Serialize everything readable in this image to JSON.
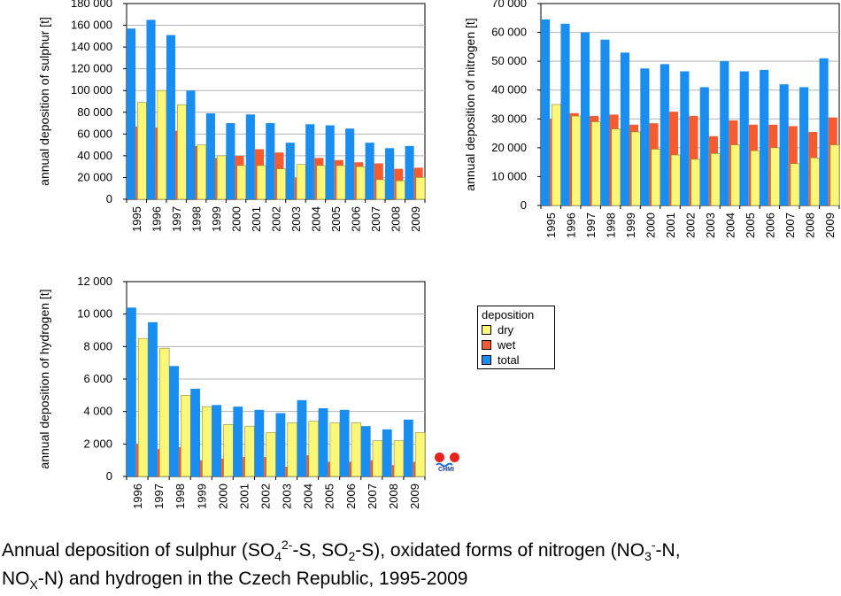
{
  "colors": {
    "dry": "#fcf776",
    "wet": "#f45b2e",
    "total": "#1a8ef0",
    "grid": "#b3b3b3"
  },
  "legend": {
    "title": "deposition",
    "items": [
      {
        "key": "dry",
        "label": "dry"
      },
      {
        "key": "wet",
        "label": "wet"
      },
      {
        "key": "total",
        "label": "total"
      }
    ]
  },
  "logo": {
    "text": "CHMI"
  },
  "caption": {
    "part1": "Annual deposition of sulphur (SO",
    "sub1": "4",
    "sup1": "2-",
    "part2": "-S, SO",
    "sub2": "2",
    "part3": "-S), oxidated forms of nitrogen (NO",
    "sub3": "3",
    "sup3": "-",
    "part4": "-N, NO",
    "sub4": "X",
    "part5": "-N) and hydrogen in the Czech Republic, 1995-2009"
  },
  "chart_data": [
    {
      "id": "sulphur",
      "type": "bar",
      "ylabel": "annual deposition of sulphur [t]",
      "ylim": [
        0,
        180000
      ],
      "ytick_step": 20000,
      "yticks": [
        "0",
        "20 000",
        "40 000",
        "60 000",
        "80 000",
        "100 000",
        "120 000",
        "140 000",
        "160 000",
        "180 000"
      ],
      "categories": [
        "1995",
        "1996",
        "1997",
        "1998",
        "1999",
        "2000",
        "2001",
        "2002",
        "2003",
        "2004",
        "2005",
        "2006",
        "2007",
        "2008",
        "2009"
      ],
      "series": [
        {
          "name": "total",
          "key": "total",
          "values": [
            157000,
            165000,
            151000,
            100000,
            79000,
            70000,
            78000,
            70000,
            52000,
            69000,
            68000,
            65000,
            52000,
            47000,
            49000
          ]
        },
        {
          "name": "wet",
          "key": "wet",
          "values": [
            67000,
            66000,
            63000,
            49000,
            38000,
            40000,
            46000,
            43000,
            20000,
            38000,
            36000,
            34000,
            33000,
            28000,
            29000
          ]
        },
        {
          "name": "dry",
          "key": "dry",
          "values": [
            89000,
            100000,
            87000,
            50000,
            40000,
            31000,
            31000,
            28000,
            32000,
            31000,
            31000,
            30000,
            18000,
            17000,
            20000
          ]
        }
      ],
      "grid": true
    },
    {
      "id": "nitrogen",
      "type": "bar",
      "ylabel": "annual deposition of nitrogen [t]",
      "ylim": [
        0,
        70000
      ],
      "ytick_step": 10000,
      "yticks": [
        "0",
        "10 000",
        "20 000",
        "30 000",
        "40 000",
        "50 000",
        "60 000",
        "70 000"
      ],
      "categories": [
        "1995",
        "1996",
        "1997",
        "1998",
        "1999",
        "2000",
        "2001",
        "2002",
        "2003",
        "2004",
        "2005",
        "2006",
        "2007",
        "2008",
        "2009"
      ],
      "series": [
        {
          "name": "total",
          "key": "total",
          "values": [
            64500,
            63000,
            60000,
            57500,
            53000,
            47500,
            49000,
            46500,
            41000,
            50000,
            46500,
            47000,
            42000,
            41000,
            51000
          ]
        },
        {
          "name": "wet",
          "key": "wet",
          "values": [
            30000,
            32000,
            31000,
            31500,
            28000,
            28500,
            32500,
            31000,
            24000,
            29500,
            28000,
            28000,
            27500,
            25500,
            30500
          ]
        },
        {
          "name": "dry",
          "key": "dry",
          "values": [
            35000,
            31000,
            29000,
            26500,
            25500,
            19500,
            17500,
            16000,
            18000,
            21000,
            19000,
            20000,
            14500,
            16500,
            21000
          ]
        }
      ],
      "grid": true
    },
    {
      "id": "hydrogen",
      "type": "bar",
      "ylabel": "annual deposition of hydrogen [t]",
      "ylim": [
        0,
        12000
      ],
      "ytick_step": 2000,
      "yticks": [
        "0",
        "2 000",
        "4 000",
        "6 000",
        "8 000",
        "10 000",
        "12 000"
      ],
      "categories": [
        "1996",
        "1997",
        "1998",
        "1999",
        "2000",
        "2001",
        "2002",
        "2003",
        "2004",
        "2005",
        "2006",
        "2007",
        "2008",
        "2009"
      ],
      "series": [
        {
          "name": "total",
          "key": "total",
          "values": [
            10400,
            9500,
            6800,
            5400,
            4400,
            4300,
            4100,
            3900,
            4700,
            4200,
            4100,
            3100,
            2900,
            3500
          ]
        },
        {
          "name": "wet",
          "key": "wet",
          "values": [
            2000,
            1700,
            1800,
            1000,
            1100,
            1200,
            1200,
            600,
            1300,
            900,
            900,
            1000,
            700,
            900
          ]
        },
        {
          "name": "dry",
          "key": "dry",
          "values": [
            8500,
            7900,
            5000,
            4300,
            3200,
            3100,
            2700,
            3300,
            3400,
            3300,
            3300,
            2200,
            2200,
            2700
          ]
        }
      ],
      "grid": true
    }
  ]
}
